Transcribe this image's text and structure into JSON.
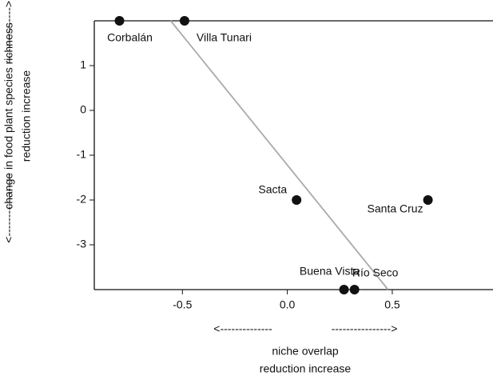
{
  "chart_data": {
    "type": "scatter",
    "x_label": "niche overlap",
    "x_label_sub": "reduction  increase",
    "x_arrows": [
      "<--------------",
      "---------------->"
    ],
    "y_label": "change in food plant species richness",
    "y_label_sub": "reduction  increase",
    "y_arrows": [
      "<-----------------",
      "--------------->"
    ],
    "labels": [
      "Corbalán",
      "Villa Tunari",
      "Sacta",
      "Santa Cruz",
      "Buena Vista",
      "Río Seco"
    ],
    "x": [
      -0.8,
      -0.49,
      0.044,
      0.67,
      0.27,
      0.32
    ],
    "y": [
      2,
      2,
      -2,
      -2,
      -4,
      -4
    ],
    "color": "#111111",
    "trend_line": {
      "x": [
        -0.556,
        0.48
      ],
      "y": [
        2,
        -4
      ],
      "color": "#aaaaaa"
    },
    "xlim": [
      -0.92,
      0.98
    ],
    "ylim": [
      -4,
      2
    ],
    "xticks": [
      -0.5,
      {
        "value": 0,
        "label": "0.0"
      },
      0.5
    ],
    "yticks": [
      -3,
      -2,
      -1,
      0,
      1
    ]
  }
}
